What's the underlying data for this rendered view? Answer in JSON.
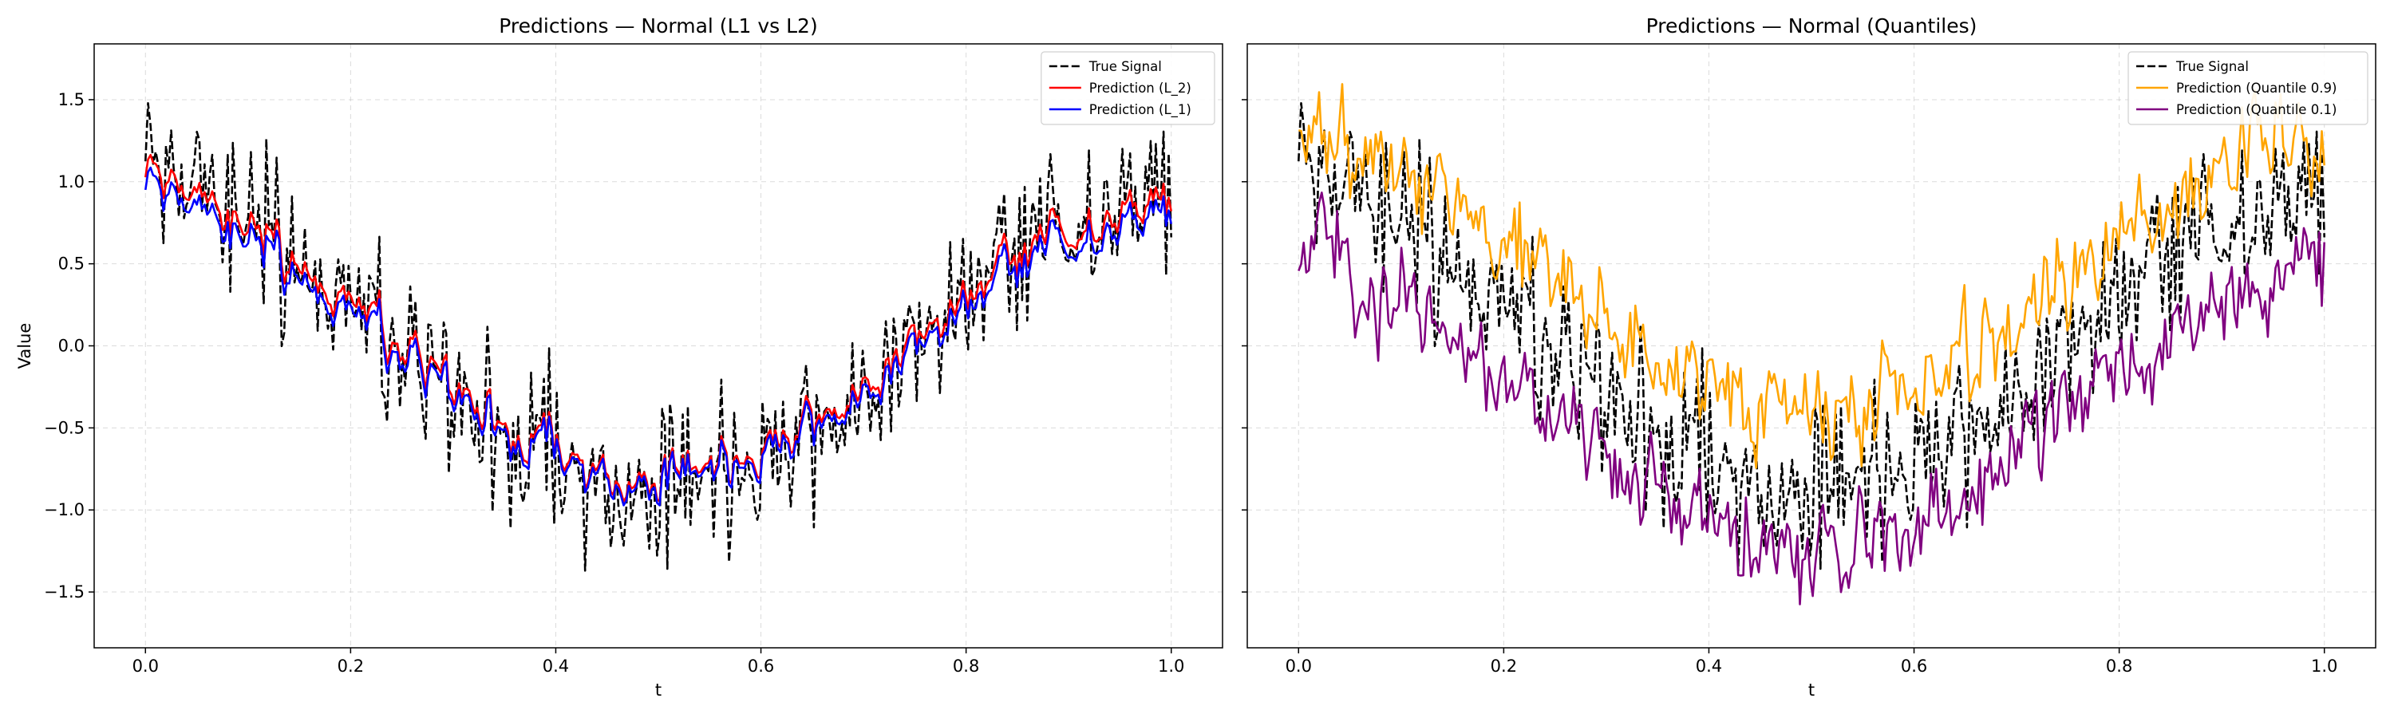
{
  "figure": {
    "sharey": true
  },
  "chart_data": [
    {
      "type": "line",
      "title": "Predictions — Normal (L1 vs L2)",
      "xlabel": "t",
      "ylabel": "Value",
      "xlim": [
        -0.05,
        1.05
      ],
      "ylim": [
        -1.84,
        1.84
      ],
      "xticks": [
        0.0,
        0.2,
        0.4,
        0.6,
        0.8,
        1.0
      ],
      "xtick_labels": [
        "0.0",
        "0.2",
        "0.4",
        "0.6",
        "0.8",
        "1.0"
      ],
      "yticks": [
        -1.5,
        -1.0,
        -0.5,
        0.0,
        0.5,
        1.0,
        1.5
      ],
      "ytick_labels": [
        "−1.5",
        "−1.0",
        "−0.5",
        "0.0",
        "0.5",
        "1.0",
        "1.5"
      ],
      "grid": true,
      "legend_position": "top-right",
      "series": [
        {
          "name": "True Signal",
          "color": "#000000",
          "dashed": true,
          "noise": 0.25,
          "offset": 0.0,
          "amp": 1.0,
          "smooth": 0.0,
          "seed": 11
        },
        {
          "name": "Prediction (L_2)",
          "color": "#ff0000",
          "dashed": false,
          "noise": 0.17,
          "offset": 0.02,
          "amp": 0.93,
          "smooth": 0.6,
          "seed": 11
        },
        {
          "name": "Prediction (L_1)",
          "color": "#0000ff",
          "dashed": false,
          "noise": 0.17,
          "offset": -0.03,
          "amp": 0.9,
          "smooth": 0.6,
          "seed": 11
        }
      ]
    },
    {
      "type": "line",
      "title": "Predictions — Normal (Quantiles)",
      "xlabel": "t",
      "ylabel": "",
      "xlim": [
        -0.05,
        1.05
      ],
      "ylim": [
        -1.84,
        1.84
      ],
      "xticks": [
        0.0,
        0.2,
        0.4,
        0.6,
        0.8,
        1.0
      ],
      "xtick_labels": [
        "0.0",
        "0.2",
        "0.4",
        "0.6",
        "0.8",
        "1.0"
      ],
      "yticks": [
        -1.5,
        -1.0,
        -0.5,
        0.0,
        0.5,
        1.0,
        1.5
      ],
      "ytick_labels": [],
      "grid": true,
      "legend_position": "top-right",
      "series": [
        {
          "name": "True Signal",
          "color": "#000000",
          "dashed": true,
          "noise": 0.25,
          "offset": 0.0,
          "amp": 1.0,
          "smooth": 0.0,
          "seed": 11
        },
        {
          "name": "Prediction (Quantile 0.9)",
          "color": "#ffa500",
          "dashed": false,
          "noise": 0.2,
          "offset": 0.4,
          "amp": 0.9,
          "smooth": 0.3,
          "seed": 23
        },
        {
          "name": "Prediction (Quantile 0.1)",
          "color": "#800080",
          "dashed": false,
          "noise": 0.2,
          "offset": -0.4,
          "amp": 0.9,
          "smooth": 0.3,
          "seed": 37
        }
      ]
    }
  ]
}
